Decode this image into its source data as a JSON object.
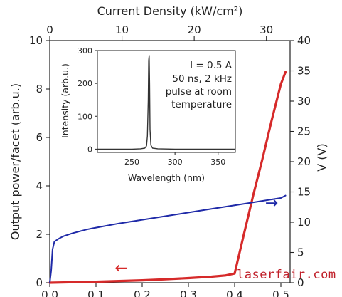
{
  "chart_data": [
    {
      "type": "line",
      "xlabel_bottom": "",
      "xlabel_top": "Current Density (kW/cm²)",
      "ylabel_left": "Output power/facet (arb.u.)",
      "ylabel_right": "V (V)",
      "xlim_bottom": [
        0,
        0.52
      ],
      "xticks_bottom": [
        "0.0",
        "0.1",
        "0.2",
        "0.3",
        "0.4",
        "0.5"
      ],
      "xlim_top": [
        0,
        33.28
      ],
      "xticks_top": [
        "0",
        "10",
        "20",
        "30"
      ],
      "ylim_left": [
        0,
        10
      ],
      "yticks_left": [
        "0",
        "2",
        "4",
        "6",
        "8",
        "10"
      ],
      "ylim_right": [
        0,
        40
      ],
      "yticks_right": [
        "0",
        "5",
        "10",
        "15",
        "20",
        "25",
        "30",
        "35",
        "40"
      ],
      "grid": false,
      "series": [
        {
          "axis": "left",
          "color": "#d62a2a",
          "x": [
            0.0,
            0.05,
            0.1,
            0.15,
            0.2,
            0.25,
            0.3,
            0.35,
            0.38,
            0.4,
            0.42,
            0.44,
            0.46,
            0.48,
            0.5,
            0.51
          ],
          "y": [
            0.0,
            0.02,
            0.04,
            0.07,
            0.1,
            0.14,
            0.19,
            0.25,
            0.3,
            0.38,
            2.0,
            3.6,
            5.1,
            6.7,
            8.2,
            8.7
          ]
        },
        {
          "axis": "right",
          "color": "#1f2aa8",
          "x": [
            0.0,
            0.003,
            0.006,
            0.01,
            0.02,
            0.03,
            0.05,
            0.08,
            0.1,
            0.15,
            0.2,
            0.25,
            0.3,
            0.35,
            0.4,
            0.45,
            0.5,
            0.51
          ],
          "y": [
            0.0,
            2.0,
            5.5,
            6.8,
            7.3,
            7.7,
            8.2,
            8.8,
            9.1,
            9.8,
            10.4,
            11.0,
            11.6,
            12.2,
            12.8,
            13.4,
            14.0,
            14.4
          ]
        }
      ],
      "annotations": [
        {
          "text": "←",
          "color": "#d62a2a",
          "x": 0.155,
          "y": 0.6,
          "axis": "left"
        },
        {
          "text": "→",
          "color": "#1f2aa8",
          "x": 0.48,
          "y": 13.2,
          "axis": "right"
        }
      ]
    },
    {
      "type": "line",
      "title": "",
      "xlabel": "Wavelength (nm)",
      "ylabel": "Intensity (arb.u.)",
      "xlim": [
        210,
        370
      ],
      "xticks": [
        "250",
        "300",
        "350"
      ],
      "ylim": [
        -10,
        300
      ],
      "yticks": [
        "0",
        "100",
        "200",
        "300"
      ],
      "annotation_lines": [
        "I = 0.5 A",
        "50 ns, 2 kHz",
        "pulse at room",
        "temperature"
      ],
      "series": [
        {
          "color": "#333333",
          "x": [
            210,
            230,
            250,
            260,
            265,
            267,
            268,
            269,
            269.5,
            270,
            270.5,
            271,
            272,
            274,
            280,
            300,
            330,
            360,
            370
          ],
          "y": [
            0,
            0,
            0,
            1,
            3,
            10,
            40,
            150,
            270,
            285,
            200,
            60,
            12,
            3,
            1,
            0,
            0,
            0,
            0
          ]
        }
      ]
    }
  ],
  "watermark": {
    "text": "laserfair.com",
    "color": "#c0202a"
  }
}
